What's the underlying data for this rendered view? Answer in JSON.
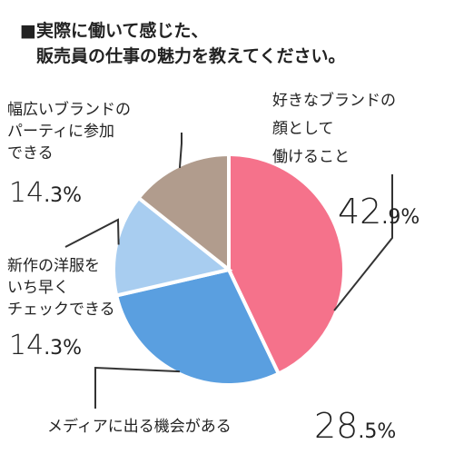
{
  "title": {
    "line1": "■実際に働いて感じた、",
    "line2": "販売員の仕事の魅力を教えてください。"
  },
  "chart_data": {
    "type": "pie",
    "title": "実際に働いて感じた、販売員の仕事の魅力を教えてください。",
    "slices": [
      {
        "label_lines": [
          "好きなブランドの",
          "顔として",
          "働けること"
        ],
        "value": 42.9,
        "value_int": "42",
        "value_dec": ".9%",
        "color": "#f5728b"
      },
      {
        "label_lines": [
          "メディアに出る機会がある"
        ],
        "value": 28.5,
        "value_int": "28",
        "value_dec": ".5%",
        "color": "#5a9fe0"
      },
      {
        "label_lines": [
          "新作の洋服を",
          "いち早く",
          "チェックできる"
        ],
        "value": 14.3,
        "value_int": "14",
        "value_dec": ".3%",
        "color": "#a8cdf0"
      },
      {
        "label_lines": [
          "幅広いブランドの",
          "パーティに参加",
          "できる"
        ],
        "value": 14.3,
        "value_int": "14",
        "value_dec": ".3%",
        "color": "#b19c8d"
      }
    ],
    "start_angle_deg": 0,
    "direction": "clockwise",
    "legend": "none",
    "labels": "outside with leader lines"
  }
}
